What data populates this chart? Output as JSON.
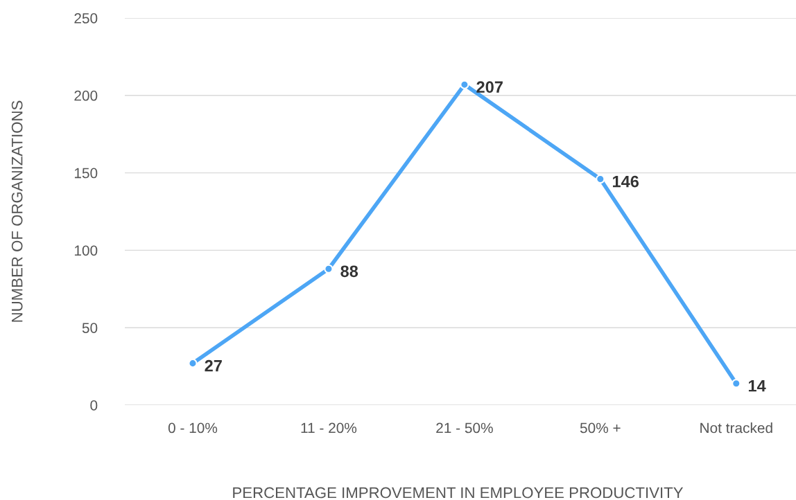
{
  "chart_data": {
    "type": "line",
    "xlabel": "PERCENTAGE IMPROVEMENT IN EMPLOYEE PRODUCTIVITY",
    "ylabel": "NUMBER OF ORGANIZATIONS",
    "categories": [
      "0 - 10%",
      "11 - 20%",
      "21 - 50%",
      "50% +",
      "Not tracked"
    ],
    "series": [
      {
        "color": "#4da6f5",
        "values": [
          27,
          88,
          207,
          146,
          14
        ]
      }
    ],
    "ylim": [
      0,
      250
    ],
    "yticks": [
      0,
      50,
      100,
      150,
      200,
      250
    ],
    "grid": "y",
    "marker": "circle",
    "line_style": "solid",
    "data_labels": true
  }
}
